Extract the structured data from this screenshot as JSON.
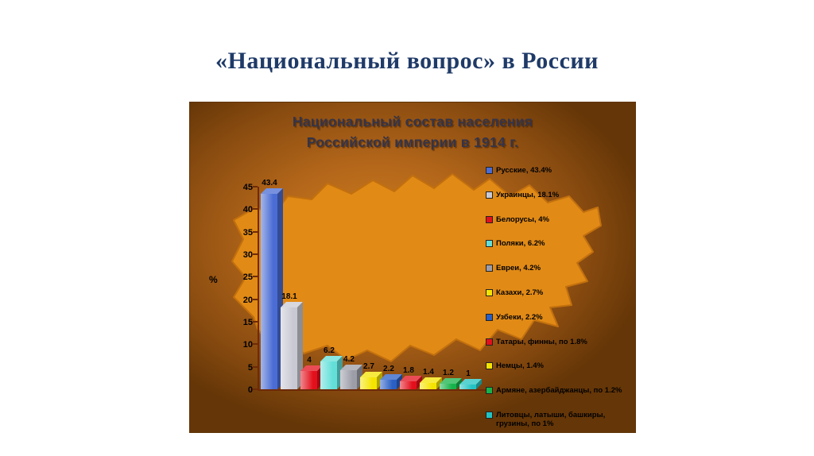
{
  "slide": {
    "title": "«Национальный вопрос» в России"
  },
  "chart_data": {
    "type": "bar",
    "title": "Национальный состав населения Российской империи в 1914 г.",
    "title_lines": [
      "Национальный состав населения",
      "Российской империи в 1914 г."
    ],
    "xlabel": "",
    "ylabel": "%",
    "ylim": [
      0,
      45
    ],
    "y_ticks": [
      0,
      5,
      10,
      15,
      20,
      25,
      30,
      35,
      40,
      45
    ],
    "grid": false,
    "legend_position": "right",
    "categories": [
      "Русские",
      "Украинцы",
      "Белорусы",
      "Поляки",
      "Евреи",
      "Казахи",
      "Узбеки",
      "Татары, финны",
      "Немцы",
      "Армяне, азербайджанцы",
      "Литовцы, латыши, башкиры, грузины"
    ],
    "values": [
      43.4,
      18.1,
      4,
      6.2,
      4.2,
      2.7,
      2.2,
      1.8,
      1.4,
      1.2,
      1
    ],
    "bar_labels": [
      "43.4",
      "18.1",
      "4",
      "6.2",
      "4.2",
      "2.7",
      "2.2",
      "1.8",
      "1.4",
      "1.2",
      "1"
    ],
    "legend": [
      {
        "label": "Русские, 43.4%",
        "color": "#4a6cd4"
      },
      {
        "label": "Украинцы, 18.1%",
        "color": "#c9c9d4"
      },
      {
        "label": "Белорусы, 4%",
        "color": "#e3101c"
      },
      {
        "label": "Поляки, 6.2%",
        "color": "#63dfd8"
      },
      {
        "label": "Евреи, 4.2%",
        "color": "#9d9da8"
      },
      {
        "label": "Казахи, 2.7%",
        "color": "#f5e400"
      },
      {
        "label": "Узбеки, 2.2%",
        "color": "#2a5fc4"
      },
      {
        "label": "Татары, финны, по 1.8%",
        "color": "#e3101c"
      },
      {
        "label": "Немцы, 1.4%",
        "color": "#f5e400"
      },
      {
        "label": "Армяне, азербайджанцы, по 1.2%",
        "color": "#17b34a"
      },
      {
        "label": "Литовцы, латыши, башкиры, грузины, по 1%",
        "color": "#23c3c3"
      }
    ],
    "background_colors": {
      "panel_dark": "#653607",
      "panel_mid": "#a95f12",
      "panel_light": "#cf7f1e",
      "map": "#e18a16",
      "axis": "#6e2a08"
    }
  }
}
